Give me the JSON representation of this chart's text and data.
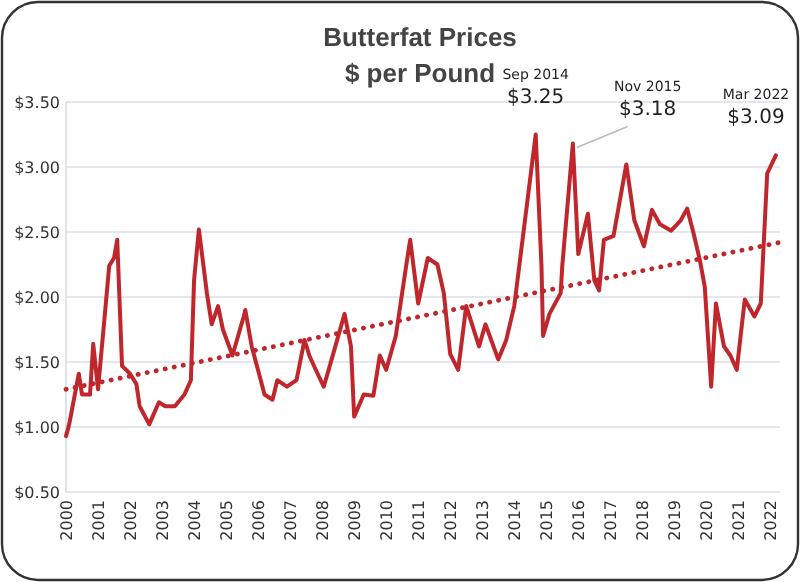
{
  "chart_data": {
    "type": "line",
    "title": "Butterfat Prices",
    "subtitle": "$ per Pound",
    "xlim": [
      2000,
      2022.3
    ],
    "xticks": [
      2000,
      2001,
      2002,
      2003,
      2004,
      2005,
      2006,
      2007,
      2008,
      2009,
      2010,
      2011,
      2012,
      2013,
      2014,
      2015,
      2016,
      2017,
      2018,
      2019,
      2020,
      2021,
      2022
    ],
    "ylim": [
      0.5,
      3.5
    ],
    "yticks": [
      {
        "value": 0.5,
        "label": "$0.50"
      },
      {
        "value": 1,
        "label": "$1.00"
      },
      {
        "value": 1.5,
        "label": "$1.50"
      },
      {
        "value": 2,
        "label": "$2.00"
      },
      {
        "value": 2.5,
        "label": "$2.50"
      },
      {
        "value": 3,
        "label": "$3.00"
      },
      {
        "value": 3.5,
        "label": "$3.50"
      }
    ],
    "grid": "y",
    "series": [
      {
        "color": "#c0272d",
        "line_style": "solid",
        "x": [
          2000,
          2000.1,
          2000.4,
          2000.5,
          2000.55,
          2000.75,
          2000.85,
          2001,
          2001.2,
          2001.35,
          2001.5,
          2001.6,
          2001.75,
          2002,
          2002.2,
          2002.3,
          2002.6,
          2002.9,
          2003.1,
          2003.4,
          2003.7,
          2003.9,
          2004,
          2004.15,
          2004.4,
          2004.55,
          2004.75,
          2004.9,
          2005.2,
          2005.55,
          2005.6,
          2005.8,
          2006.05,
          2006.2,
          2006.45,
          2006.6,
          2006.9,
          2007.2,
          2007.45,
          2007.6,
          2007.8,
          2008.05,
          2008.25,
          2008.7,
          2008.9,
          2009,
          2009.3,
          2009.6,
          2009.8,
          2010,
          2010.3,
          2010.6,
          2010.75,
          2011,
          2011.3,
          2011.6,
          2011.8,
          2012,
          2012.25,
          2012.5,
          2012.9,
          2013.1,
          2013.5,
          2013.75,
          2014,
          2014.67,
          2014.85,
          2014.9,
          2015.1,
          2015.45,
          2015.5,
          2015.83,
          2016,
          2016.3,
          2016.5,
          2016.65,
          2016.8,
          2017.1,
          2017.5,
          2017.75,
          2018.05,
          2018.3,
          2018.55,
          2018.9,
          2019.2,
          2019.4,
          2019.6,
          2019.8,
          2019.95,
          2020.15,
          2020.3,
          2020.55,
          2020.75,
          2020.95,
          2021.2,
          2021.5,
          2021.7,
          2021.9,
          2022.17
        ],
        "values": [
          0.93,
          1.02,
          1.41,
          1.25,
          1.25,
          1.25,
          1.64,
          1.29,
          1.83,
          2.24,
          2.3,
          2.44,
          1.47,
          1.41,
          1.33,
          1.16,
          1.02,
          1.19,
          1.16,
          1.16,
          1.25,
          1.36,
          2.13,
          2.52,
          2.03,
          1.79,
          1.93,
          1.75,
          1.55,
          1.85,
          1.9,
          1.62,
          1.39,
          1.25,
          1.21,
          1.36,
          1.31,
          1.36,
          1.67,
          1.55,
          1.44,
          1.31,
          1.48,
          1.87,
          1.62,
          1.08,
          1.25,
          1.24,
          1.55,
          1.44,
          1.7,
          2.2,
          2.44,
          1.95,
          2.3,
          2.25,
          2.03,
          1.56,
          1.44,
          1.93,
          1.62,
          1.79,
          1.52,
          1.67,
          1.93,
          3.25,
          2.24,
          1.7,
          1.87,
          2.03,
          2.24,
          3.18,
          2.33,
          2.64,
          2.13,
          2.05,
          2.44,
          2.47,
          3.02,
          2.59,
          2.39,
          2.67,
          2.56,
          2.51,
          2.59,
          2.68,
          2.49,
          2.28,
          2.08,
          1.31,
          1.95,
          1.62,
          1.55,
          1.44,
          1.98,
          1.85,
          1.95,
          2.95,
          3.09
        ]
      },
      {
        "color": "#c0272d",
        "line_style": "dotted",
        "x": [
          2000,
          2022.3
        ],
        "values": [
          1.29,
          2.42
        ]
      }
    ],
    "annotations": [
      {
        "text": "Sep 2014\n$3.25",
        "x": 2014.67,
        "y": 3.25
      },
      {
        "text": "Nov 2015\n$3.18",
        "x": 2015.83,
        "y": 3.18
      },
      {
        "text": "Mar 2022\n$3.09",
        "x": 2022.17,
        "y": 3.09
      }
    ]
  }
}
